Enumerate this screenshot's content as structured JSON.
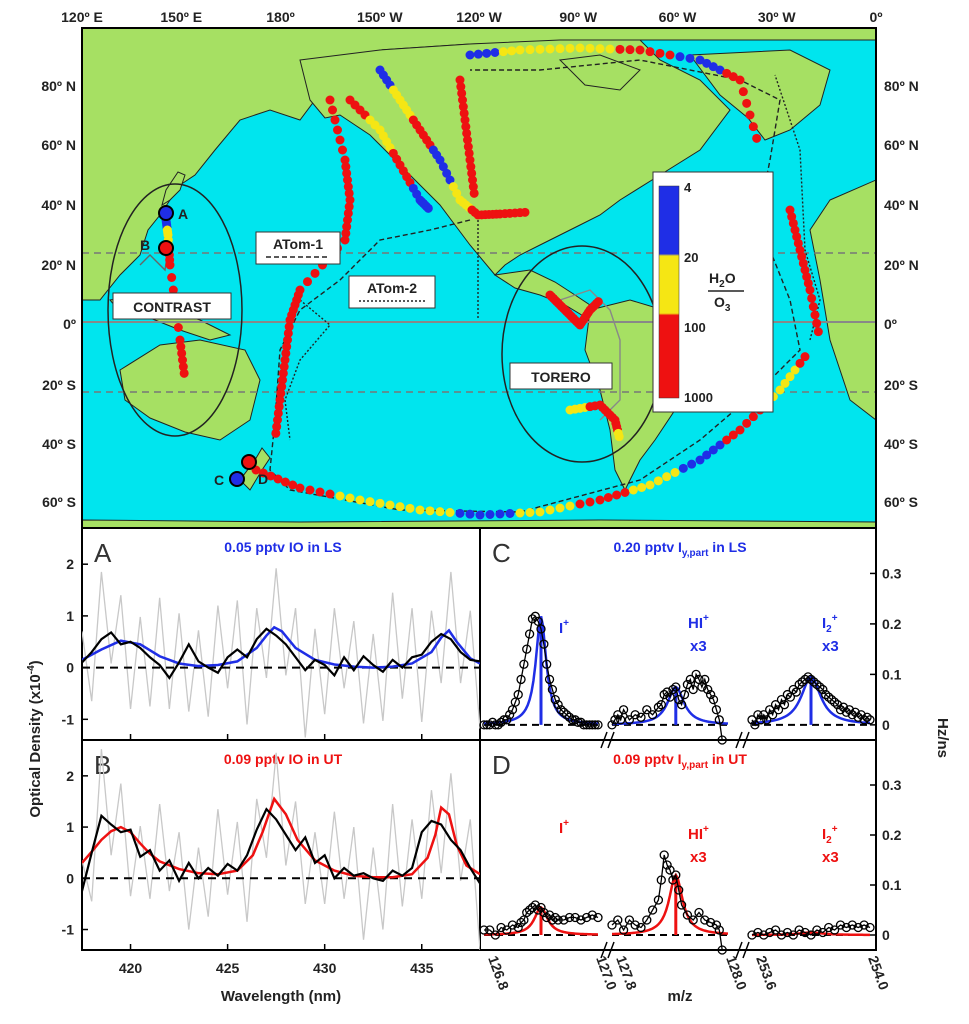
{
  "colors": {
    "ocean": "#00e5ee",
    "land": "#a6e063",
    "blue": "#1f2ee6",
    "red": "#ee1111",
    "yellow": "#f5e614",
    "black": "#000000",
    "grey": "#c8c8c8"
  },
  "map": {
    "lon_labels": [
      "120º E",
      "150º E",
      "180º",
      "150º W",
      "120º W",
      "90º W",
      "60º W",
      "30º W",
      "0º"
    ],
    "lat_labels": [
      "80º N",
      "60º N",
      "40º N",
      "20º N",
      "0º",
      "20º S",
      "40º S",
      "60º S"
    ],
    "campaigns": {
      "contrast": "CONTRAST",
      "torero": "TORERO",
      "atom1": "ATom-1",
      "atom2": "ATom-2"
    },
    "points": {
      "a": "A",
      "b": "B",
      "c": "C",
      "d": "D"
    },
    "colorbar": {
      "ticks": [
        "4",
        "20",
        "100",
        "1000"
      ],
      "label_main": "H",
      "label_sub1": "2",
      "label_mid": "O",
      "label_den": "O",
      "label_sub2": "3"
    }
  },
  "panels": {
    "A": {
      "letter": "A",
      "title": "0.05 pptv IO in LS"
    },
    "B": {
      "letter": "B",
      "title": "0.09 pptv IO in UT"
    },
    "C": {
      "letter": "C",
      "title_pre": "0.20 pptv I",
      "title_sub": "y,part",
      "title_post": " in LS"
    },
    "D": {
      "letter": "D",
      "title_pre": "0.09 pptv I",
      "title_sub": "y,part",
      "title_post": " in UT"
    }
  },
  "axes": {
    "left_ylabel_pre": "Optical Density (x10",
    "left_ylabel_sup": "-4",
    "left_ylabel_post": ")",
    "left_xlabel": "Wavelength (nm)",
    "right_ylabel": "Hz/ns",
    "right_xlabel": "m/z",
    "peak_labels": {
      "i": "I",
      "plus": "+",
      "hi": "HI",
      "i2": "I",
      "i2_sub": "2",
      "x3": "x3"
    }
  },
  "chart_data": [
    {
      "type": "line",
      "panel": "A",
      "xlabel": "",
      "ylabel": "",
      "xlim": [
        417.5,
        438
      ],
      "ylim": [
        -1.4,
        2.7
      ],
      "x_ticks": [
        420,
        425,
        430,
        435
      ],
      "y_ticks": [
        -1,
        0,
        1,
        2
      ],
      "series": [
        {
          "style": "fit",
          "x": [
            417.5,
            418.5,
            419.5,
            420.5,
            421.5,
            422.5,
            423.5,
            424.5,
            425.5,
            426.5,
            427.0,
            427.4,
            427.8,
            428.5,
            429.5,
            430.5,
            431.5,
            432.5,
            433.5,
            434.5,
            435.5,
            436.0,
            436.4,
            436.8,
            437.5,
            438.0
          ],
          "y": [
            0.15,
            0.35,
            0.52,
            0.45,
            0.22,
            0.08,
            0.03,
            0.05,
            0.12,
            0.38,
            0.62,
            0.78,
            0.7,
            0.38,
            0.15,
            0.06,
            0.02,
            0.0,
            0.02,
            0.08,
            0.3,
            0.58,
            0.72,
            0.5,
            0.18,
            0.08
          ]
        },
        {
          "style": "measured",
          "x": [
            417.5,
            418.0,
            418.5,
            419.0,
            419.5,
            420.0,
            420.5,
            421.0,
            421.5,
            422.0,
            422.5,
            423.0,
            423.5,
            424.0,
            424.5,
            425.0,
            425.5,
            426.0,
            426.5,
            427.0,
            427.5,
            428.0,
            428.5,
            429.0,
            429.5,
            430.0,
            430.5,
            431.0,
            431.5,
            432.0,
            432.5,
            433.0,
            433.5,
            434.0,
            434.5,
            435.0,
            435.5,
            436.0,
            436.5,
            437.0,
            437.5,
            438.0
          ],
          "y": [
            0.1,
            0.3,
            0.55,
            0.68,
            0.45,
            0.5,
            0.38,
            0.2,
            0.05,
            -0.2,
            0.1,
            0.45,
            0.12,
            0.0,
            -0.1,
            0.2,
            0.35,
            0.2,
            0.55,
            0.75,
            0.62,
            0.45,
            0.2,
            -0.05,
            0.15,
            0.05,
            -0.15,
            0.2,
            -0.05,
            0.22,
            0.05,
            -0.08,
            0.15,
            0.0,
            0.2,
            0.25,
            0.5,
            0.65,
            0.55,
            0.3,
            0.15,
            0.12
          ]
        }
      ]
    },
    {
      "type": "line",
      "panel": "B",
      "xlabel": "Wavelength (nm)",
      "ylabel": "",
      "xlim": [
        417.5,
        438
      ],
      "ylim": [
        -1.4,
        2.7
      ],
      "x_ticks": [
        420,
        425,
        430,
        435
      ],
      "y_ticks": [
        -1,
        0,
        1,
        2
      ],
      "series": [
        {
          "style": "fit",
          "x": [
            417.5,
            418.0,
            418.5,
            419.0,
            419.5,
            420.0,
            420.5,
            421.0,
            421.5,
            422.5,
            423.5,
            424.5,
            425.5,
            426.3,
            426.8,
            427.4,
            428.0,
            428.6,
            429.5,
            430.5,
            431.5,
            432.5,
            433.5,
            434.5,
            435.3,
            435.7,
            436.0,
            436.4,
            436.8,
            437.3,
            438.0
          ],
          "y": [
            0.3,
            0.52,
            0.75,
            0.92,
            1.0,
            0.9,
            0.68,
            0.48,
            0.33,
            0.18,
            0.1,
            0.08,
            0.15,
            0.45,
            0.9,
            1.55,
            1.25,
            0.75,
            0.35,
            0.15,
            0.05,
            0.02,
            0.02,
            0.08,
            0.4,
            0.85,
            1.38,
            1.25,
            0.65,
            0.25,
            0.08
          ]
        },
        {
          "style": "measured",
          "x": [
            417.5,
            418.0,
            418.5,
            419.0,
            419.5,
            420.0,
            420.5,
            421.0,
            421.5,
            422.0,
            422.5,
            423.0,
            423.5,
            424.0,
            424.5,
            425.0,
            425.5,
            426.0,
            426.5,
            427.0,
            427.5,
            428.0,
            428.5,
            429.0,
            429.5,
            430.0,
            430.5,
            431.0,
            431.5,
            432.0,
            432.5,
            433.0,
            433.5,
            434.0,
            434.5,
            435.0,
            435.5,
            436.0,
            436.5,
            437.0,
            437.5,
            438.0
          ],
          "y": [
            -0.25,
            0.5,
            1.22,
            1.05,
            0.9,
            0.95,
            0.42,
            0.55,
            0.15,
            0.35,
            -0.05,
            0.3,
            0.0,
            0.2,
            0.05,
            0.28,
            0.15,
            0.45,
            0.95,
            1.35,
            1.15,
            0.85,
            0.55,
            0.8,
            0.3,
            0.45,
            0.0,
            0.2,
            0.05,
            0.1,
            0.0,
            -0.05,
            0.15,
            0.05,
            0.2,
            0.9,
            1.12,
            1.05,
            0.75,
            0.55,
            0.2,
            -0.1
          ]
        }
      ]
    },
    {
      "type": "scatter",
      "panel": "C",
      "xlabel": "",
      "ylabel": "Hz/ns",
      "ylim": [
        -0.03,
        0.39
      ],
      "y_ticks": [
        0,
        0.1,
        0.2,
        0.3
      ],
      "segments": [
        {
          "xlim": [
            126.8,
            127.0
          ],
          "x_ticks": [
            126.8,
            127.0
          ],
          "peak_x": 126.9,
          "peak": 0.215,
          "width": 0.011,
          "sx": [
            126.8,
            126.805,
            126.81,
            126.815,
            126.82,
            126.825,
            126.83,
            126.835,
            126.84,
            126.845,
            126.85,
            126.855,
            126.86,
            126.865,
            126.87,
            126.875,
            126.88,
            126.885,
            126.89,
            126.895,
            126.9,
            126.905,
            126.91,
            126.915,
            126.92,
            126.925,
            126.93,
            126.935,
            126.94,
            126.945,
            126.95,
            126.955,
            126.96,
            126.965,
            126.97,
            126.975,
            126.98,
            126.985,
            126.99,
            126.995,
            127.0
          ],
          "sy": [
            0.0,
            0.0,
            0.0,
            0.005,
            0.0,
            0.0,
            0.005,
            0.01,
            0.01,
            0.02,
            0.03,
            0.045,
            0.06,
            0.09,
            0.12,
            0.15,
            0.18,
            0.21,
            0.215,
            0.205,
            0.19,
            0.16,
            0.12,
            0.09,
            0.07,
            0.05,
            0.04,
            0.03,
            0.025,
            0.02,
            0.015,
            0.01,
            0.01,
            0.005,
            0.005,
            0.0,
            0.0,
            0.0,
            0.0,
            0.0,
            0.0
          ]
        },
        {
          "xlim": [
            127.8,
            128.0
          ],
          "x_ticks": [
            127.8,
            128.0
          ],
          "peak_x": 127.91,
          "peak": 0.075,
          "width": 0.017,
          "sx": [
            127.8,
            127.805,
            127.81,
            127.815,
            127.82,
            127.83,
            127.84,
            127.85,
            127.86,
            127.87,
            127.88,
            127.885,
            127.89,
            127.895,
            127.9,
            127.905,
            127.91,
            127.915,
            127.92,
            127.925,
            127.93,
            127.935,
            127.94,
            127.945,
            127.95,
            127.955,
            127.96,
            127.965,
            127.97,
            127.975,
            127.98,
            127.985,
            127.99
          ],
          "sy": [
            0.0,
            0.01,
            0.02,
            0.01,
            0.03,
            0.01,
            0.02,
            0.015,
            0.03,
            0.02,
            0.035,
            0.04,
            0.06,
            0.065,
            0.055,
            0.07,
            0.075,
            0.05,
            0.04,
            0.06,
            0.08,
            0.09,
            0.07,
            0.1,
            0.09,
            0.075,
            0.09,
            0.07,
            0.06,
            0.05,
            0.03,
            0.01,
            -0.03
          ]
        },
        {
          "xlim": [
            253.6,
            254.0
          ],
          "x_ticks": [
            253.6,
            254.0
          ],
          "peak_x": 253.8,
          "peak": 0.095,
          "width": 0.04,
          "sx": [
            253.6,
            253.61,
            253.62,
            253.63,
            253.64,
            253.65,
            253.66,
            253.67,
            253.68,
            253.69,
            253.7,
            253.71,
            253.72,
            253.73,
            253.74,
            253.75,
            253.76,
            253.77,
            253.78,
            253.79,
            253.8,
            253.81,
            253.82,
            253.83,
            253.84,
            253.85,
            253.86,
            253.87,
            253.88,
            253.89,
            253.9,
            253.91,
            253.92,
            253.93,
            253.94,
            253.95,
            253.96,
            253.97,
            253.98,
            253.99,
            254.0
          ],
          "sy": [
            0.01,
            0.0,
            0.02,
            0.01,
            0.02,
            0.01,
            0.03,
            0.02,
            0.04,
            0.03,
            0.05,
            0.04,
            0.06,
            0.055,
            0.07,
            0.065,
            0.08,
            0.085,
            0.09,
            0.095,
            0.09,
            0.085,
            0.08,
            0.075,
            0.07,
            0.06,
            0.055,
            0.05,
            0.045,
            0.04,
            0.03,
            0.035,
            0.025,
            0.03,
            0.02,
            0.025,
            0.015,
            0.02,
            0.01,
            0.015,
            0.01
          ]
        }
      ]
    },
    {
      "type": "scatter",
      "panel": "D",
      "xlabel": "m/z",
      "ylabel": "Hz/ns",
      "ylim": [
        -0.03,
        0.39
      ],
      "y_ticks": [
        0,
        0.1,
        0.2,
        0.3
      ],
      "segments": [
        {
          "xlim": [
            126.8,
            127.0
          ],
          "x_ticks": [
            126.8,
            127.0
          ],
          "peak_x": 126.9,
          "peak": 0.055,
          "width": 0.014,
          "sx": [
            126.8,
            126.81,
            126.82,
            126.83,
            126.84,
            126.85,
            126.86,
            126.865,
            126.87,
            126.875,
            126.88,
            126.885,
            126.89,
            126.895,
            126.9,
            126.905,
            126.91,
            126.915,
            126.92,
            126.925,
            126.93,
            126.94,
            126.95,
            126.96,
            126.97,
            126.98,
            126.99,
            127.0
          ],
          "sy": [
            0.01,
            0.01,
            0.0,
            0.015,
            0.01,
            0.02,
            0.015,
            0.025,
            0.03,
            0.045,
            0.05,
            0.055,
            0.06,
            0.05,
            0.055,
            0.045,
            0.035,
            0.04,
            0.03,
            0.035,
            0.03,
            0.03,
            0.035,
            0.035,
            0.03,
            0.035,
            0.04,
            0.035
          ]
        },
        {
          "xlim": [
            127.8,
            128.0
          ],
          "x_ticks": [
            127.8,
            128.0
          ],
          "peak_x": 127.91,
          "peak": 0.12,
          "width": 0.014,
          "sx": [
            127.8,
            127.81,
            127.82,
            127.83,
            127.84,
            127.85,
            127.86,
            127.87,
            127.88,
            127.885,
            127.89,
            127.895,
            127.9,
            127.905,
            127.91,
            127.915,
            127.92,
            127.93,
            127.94,
            127.95,
            127.96,
            127.97,
            127.98,
            127.985,
            127.99
          ],
          "sy": [
            0.02,
            0.03,
            0.01,
            0.03,
            0.02,
            0.015,
            0.03,
            0.05,
            0.07,
            0.11,
            0.16,
            0.14,
            0.13,
            0.11,
            0.12,
            0.09,
            0.06,
            0.04,
            0.03,
            0.045,
            0.03,
            0.025,
            0.02,
            0.01,
            -0.03
          ]
        },
        {
          "xlim": [
            253.6,
            254.0
          ],
          "x_ticks": [
            253.6,
            254.0
          ],
          "peak_x": 253.8,
          "peak": 0.005,
          "width": 0.05,
          "sx": [
            253.6,
            253.62,
            253.64,
            253.66,
            253.68,
            253.7,
            253.72,
            253.74,
            253.76,
            253.78,
            253.8,
            253.82,
            253.84,
            253.86,
            253.88,
            253.9,
            253.92,
            253.94,
            253.96,
            253.98,
            254.0
          ],
          "sy": [
            0.0,
            0.005,
            0.0,
            0.005,
            0.01,
            0.0,
            0.005,
            0.0,
            0.01,
            0.005,
            0.0,
            0.01,
            0.005,
            0.015,
            0.01,
            0.02,
            0.015,
            0.02,
            0.015,
            0.02,
            0.015
          ]
        }
      ]
    }
  ]
}
